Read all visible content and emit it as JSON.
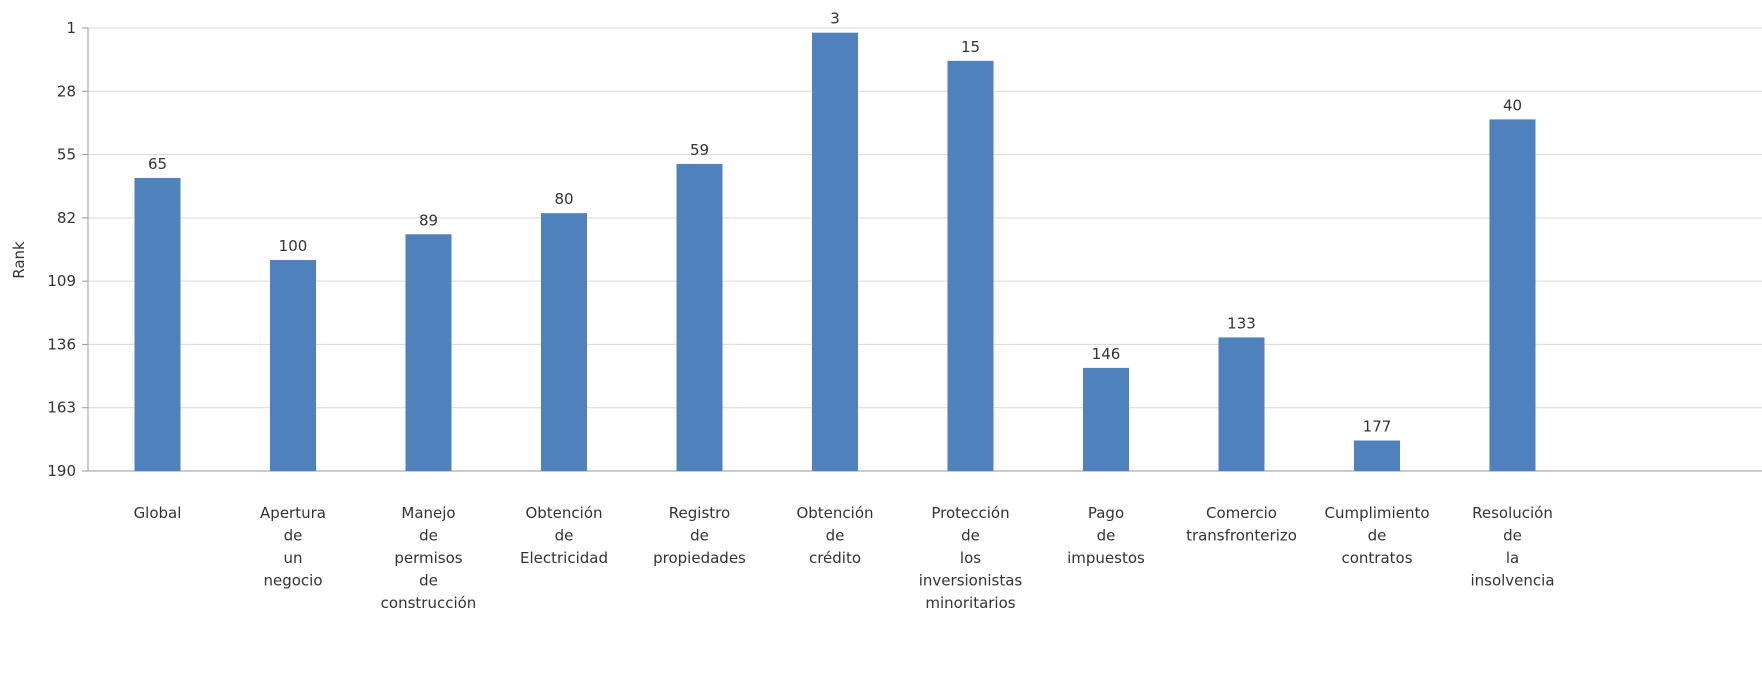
{
  "chart_data": {
    "type": "bar",
    "ylabel": "Rank",
    "y_reversed": true,
    "ylim": [
      1,
      190
    ],
    "yticks": [
      1,
      28,
      55,
      82,
      109,
      136,
      163,
      190
    ],
    "grid": true,
    "bar_color": "#4f81bd",
    "categories": [
      "Global",
      "Apertura de un negocio",
      "Manejo de permisos de construcción",
      "Obtención de Electricidad",
      "Registro de propiedades",
      "Obtención de crédito",
      "Protección de los inversionistas minoritarios",
      "Pago de impuestos",
      "Comercio transfronterizo",
      "Cumplimiento de contratos",
      "Resolución de la insolvencia"
    ],
    "category_lines": [
      [
        "Global"
      ],
      [
        "Apertura",
        "de",
        "un",
        "negocio"
      ],
      [
        "Manejo",
        "de",
        "permisos",
        "de",
        "construcción"
      ],
      [
        "Obtención",
        "de",
        "Electricidad"
      ],
      [
        "Registro",
        "de",
        "propiedades"
      ],
      [
        "Obtención",
        "de",
        "crédito"
      ],
      [
        "Protección",
        "de",
        "los",
        "inversionistas",
        "minoritarios"
      ],
      [
        "Pago",
        "de",
        "impuestos"
      ],
      [
        "Comercio",
        "transfronterizo"
      ],
      [
        "Cumplimiento",
        "de",
        "contratos"
      ],
      [
        "Resolución",
        "de",
        "la",
        "insolvencia"
      ]
    ],
    "values": [
      65,
      100,
      89,
      80,
      59,
      3,
      15,
      146,
      133,
      177,
      40
    ]
  }
}
